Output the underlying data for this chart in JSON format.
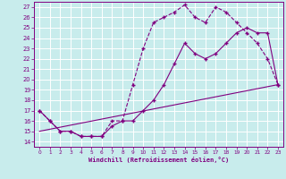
{
  "title": "",
  "xlabel": "Windchill (Refroidissement éolien,°C)",
  "xlim": [
    -0.5,
    23.5
  ],
  "ylim": [
    13.5,
    27.5
  ],
  "xticks": [
    0,
    1,
    2,
    3,
    4,
    5,
    6,
    7,
    8,
    9,
    10,
    11,
    12,
    13,
    14,
    15,
    16,
    17,
    18,
    19,
    20,
    21,
    22,
    23
  ],
  "yticks": [
    14,
    15,
    16,
    17,
    18,
    19,
    20,
    21,
    22,
    23,
    24,
    25,
    26,
    27
  ],
  "bg_color": "#c8ecec",
  "line_color": "#800080",
  "grid_color": "#ffffff",
  "curve1_x": [
    0,
    1,
    2,
    3,
    4,
    5,
    6,
    7,
    8,
    9,
    10,
    11,
    12,
    13,
    14,
    15,
    16,
    17,
    18,
    19,
    20,
    21,
    22,
    23
  ],
  "curve1_y": [
    17.0,
    16.0,
    15.0,
    15.0,
    14.5,
    14.5,
    14.5,
    16.0,
    16.0,
    19.5,
    23.0,
    25.5,
    26.0,
    26.5,
    27.2,
    26.0,
    25.5,
    27.0,
    26.5,
    25.5,
    24.5,
    23.5,
    22.0,
    19.5
  ],
  "curve2_x": [
    0,
    1,
    2,
    3,
    4,
    5,
    6,
    7,
    8,
    9,
    10,
    11,
    12,
    13,
    14,
    15,
    16,
    17,
    18,
    19,
    20,
    21,
    22,
    23
  ],
  "curve2_y": [
    17.0,
    16.0,
    15.0,
    15.0,
    14.5,
    14.5,
    14.5,
    15.5,
    16.0,
    16.0,
    17.0,
    18.0,
    19.5,
    21.5,
    23.5,
    22.5,
    22.0,
    22.5,
    23.5,
    24.5,
    25.0,
    24.5,
    24.5,
    19.5
  ],
  "curve3_x": [
    0,
    23
  ],
  "curve3_y": [
    15.0,
    19.5
  ]
}
